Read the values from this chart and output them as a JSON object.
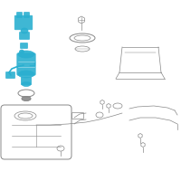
{
  "bg_color": "#ffffff",
  "line_color": "#888888",
  "highlight_color": "#2aafd0",
  "fig_size": [
    2.0,
    2.0
  ],
  "dpi": 100
}
